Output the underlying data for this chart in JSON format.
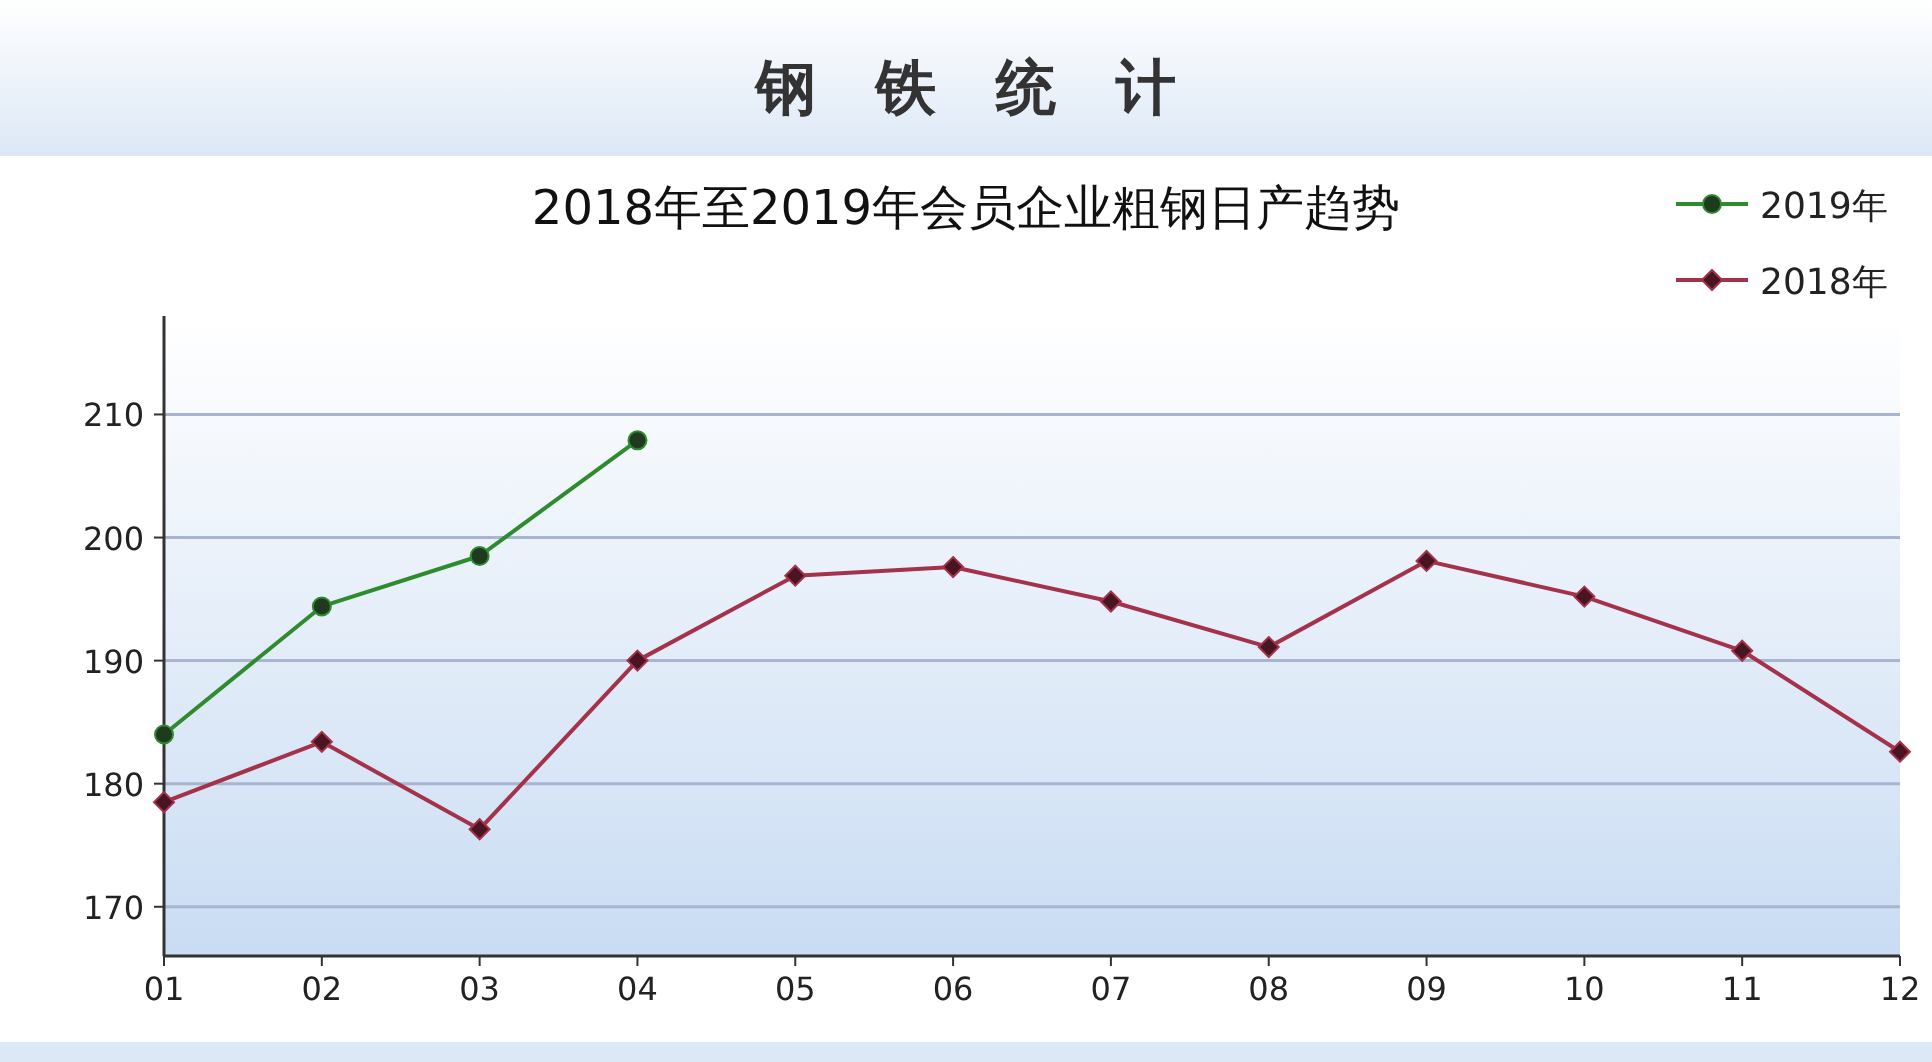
{
  "chart_data": {
    "type": "line",
    "title": "钢　铁　统　计",
    "subtitle": "2018年至2019年会员企业粗钢日产趋势",
    "categories": [
      "01",
      "02",
      "03",
      "04",
      "05",
      "06",
      "07",
      "08",
      "09",
      "10",
      "11",
      "12"
    ],
    "series": [
      {
        "name": "2019年",
        "color": "#2e8b2e",
        "marker": "circle",
        "values": [
          184.0,
          194.4,
          198.5,
          207.9,
          null,
          null,
          null,
          null,
          null,
          null,
          null,
          null
        ]
      },
      {
        "name": "2018年",
        "color": "#a3324a",
        "marker": "diamond",
        "values": [
          178.5,
          183.4,
          176.3,
          190.0,
          196.9,
          197.6,
          194.8,
          191.1,
          198.1,
          195.2,
          190.8,
          182.6
        ]
      }
    ],
    "ylim": [
      166,
      218
    ],
    "yticks": [
      170,
      180,
      190,
      200,
      210
    ],
    "grid": "y",
    "legend": "top right"
  }
}
